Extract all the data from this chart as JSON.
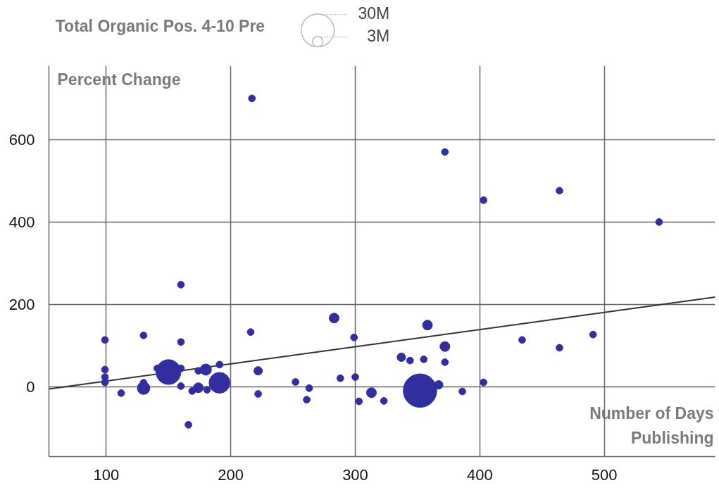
{
  "chart_data": {
    "type": "bubble",
    "legend_title": "Total Organic Pos. 4-10 Pre",
    "ylabel": "Percent Change",
    "xlabel": "Number of Days Publishing",
    "size_legend": [
      {
        "value": 3,
        "label": "3M"
      },
      {
        "value": 30,
        "label": "30M"
      }
    ],
    "series": [
      {
        "color": "#312e9f",
        "x": [
          160,
          99,
          130,
          160,
          216,
          283,
          299,
          99,
          99,
          99,
          150,
          141,
          160,
          130,
          130,
          112,
          160,
          174,
          180,
          191,
          191,
          174,
          169,
          181,
          166,
          222,
          222,
          252,
          263,
          261,
          288,
          300,
          303,
          313,
          323,
          337,
          344,
          355,
          358,
          372,
          372,
          352,
          367,
          386,
          403,
          434,
          464,
          491,
          217,
          372,
          403,
          464,
          544
        ],
        "values": [
          248,
          114,
          125,
          109,
          133,
          167,
          120,
          42,
          24,
          11,
          36,
          45,
          45,
          -3,
          10,
          -15,
          2,
          39,
          42,
          54,
          10,
          -2,
          -10,
          -7,
          -92,
          39,
          -17,
          12,
          -3,
          -31,
          21,
          24,
          -35,
          -14,
          -34,
          72,
          64,
          67,
          150,
          98,
          60,
          -9,
          5,
          -11,
          11,
          114,
          95,
          127,
          700,
          570,
          453,
          476,
          400
        ],
        "sizes": [
          1.3,
          1.3,
          1.3,
          1.3,
          1.3,
          2.7,
          1.3,
          1.3,
          1.3,
          1.3,
          17,
          1.3,
          1.3,
          4.4,
          1.3,
          1.3,
          1.3,
          1.3,
          3.5,
          1.3,
          12,
          2.7,
          1.3,
          1.3,
          1.3,
          2,
          1.3,
          1.3,
          1.3,
          1.3,
          1.3,
          1.3,
          1.3,
          2.7,
          1.3,
          2,
          1.3,
          1.3,
          2.7,
          2.7,
          1.3,
          31,
          2,
          1.3,
          1.3,
          1.3,
          1.3,
          1.3,
          1.3,
          1.3,
          1.3,
          1.3,
          1.3
        ]
      },
      {
        "type": "line",
        "color": "#333333",
        "x": [
          54,
          589
        ],
        "values": [
          -5,
          218
        ]
      }
    ],
    "xlim": [
      54,
      589
    ],
    "ylim": [
      -169,
      779
    ],
    "xticks": [
      100,
      200,
      300,
      400,
      500
    ],
    "yticks": [
      0,
      200,
      400,
      600
    ],
    "grid": true
  }
}
